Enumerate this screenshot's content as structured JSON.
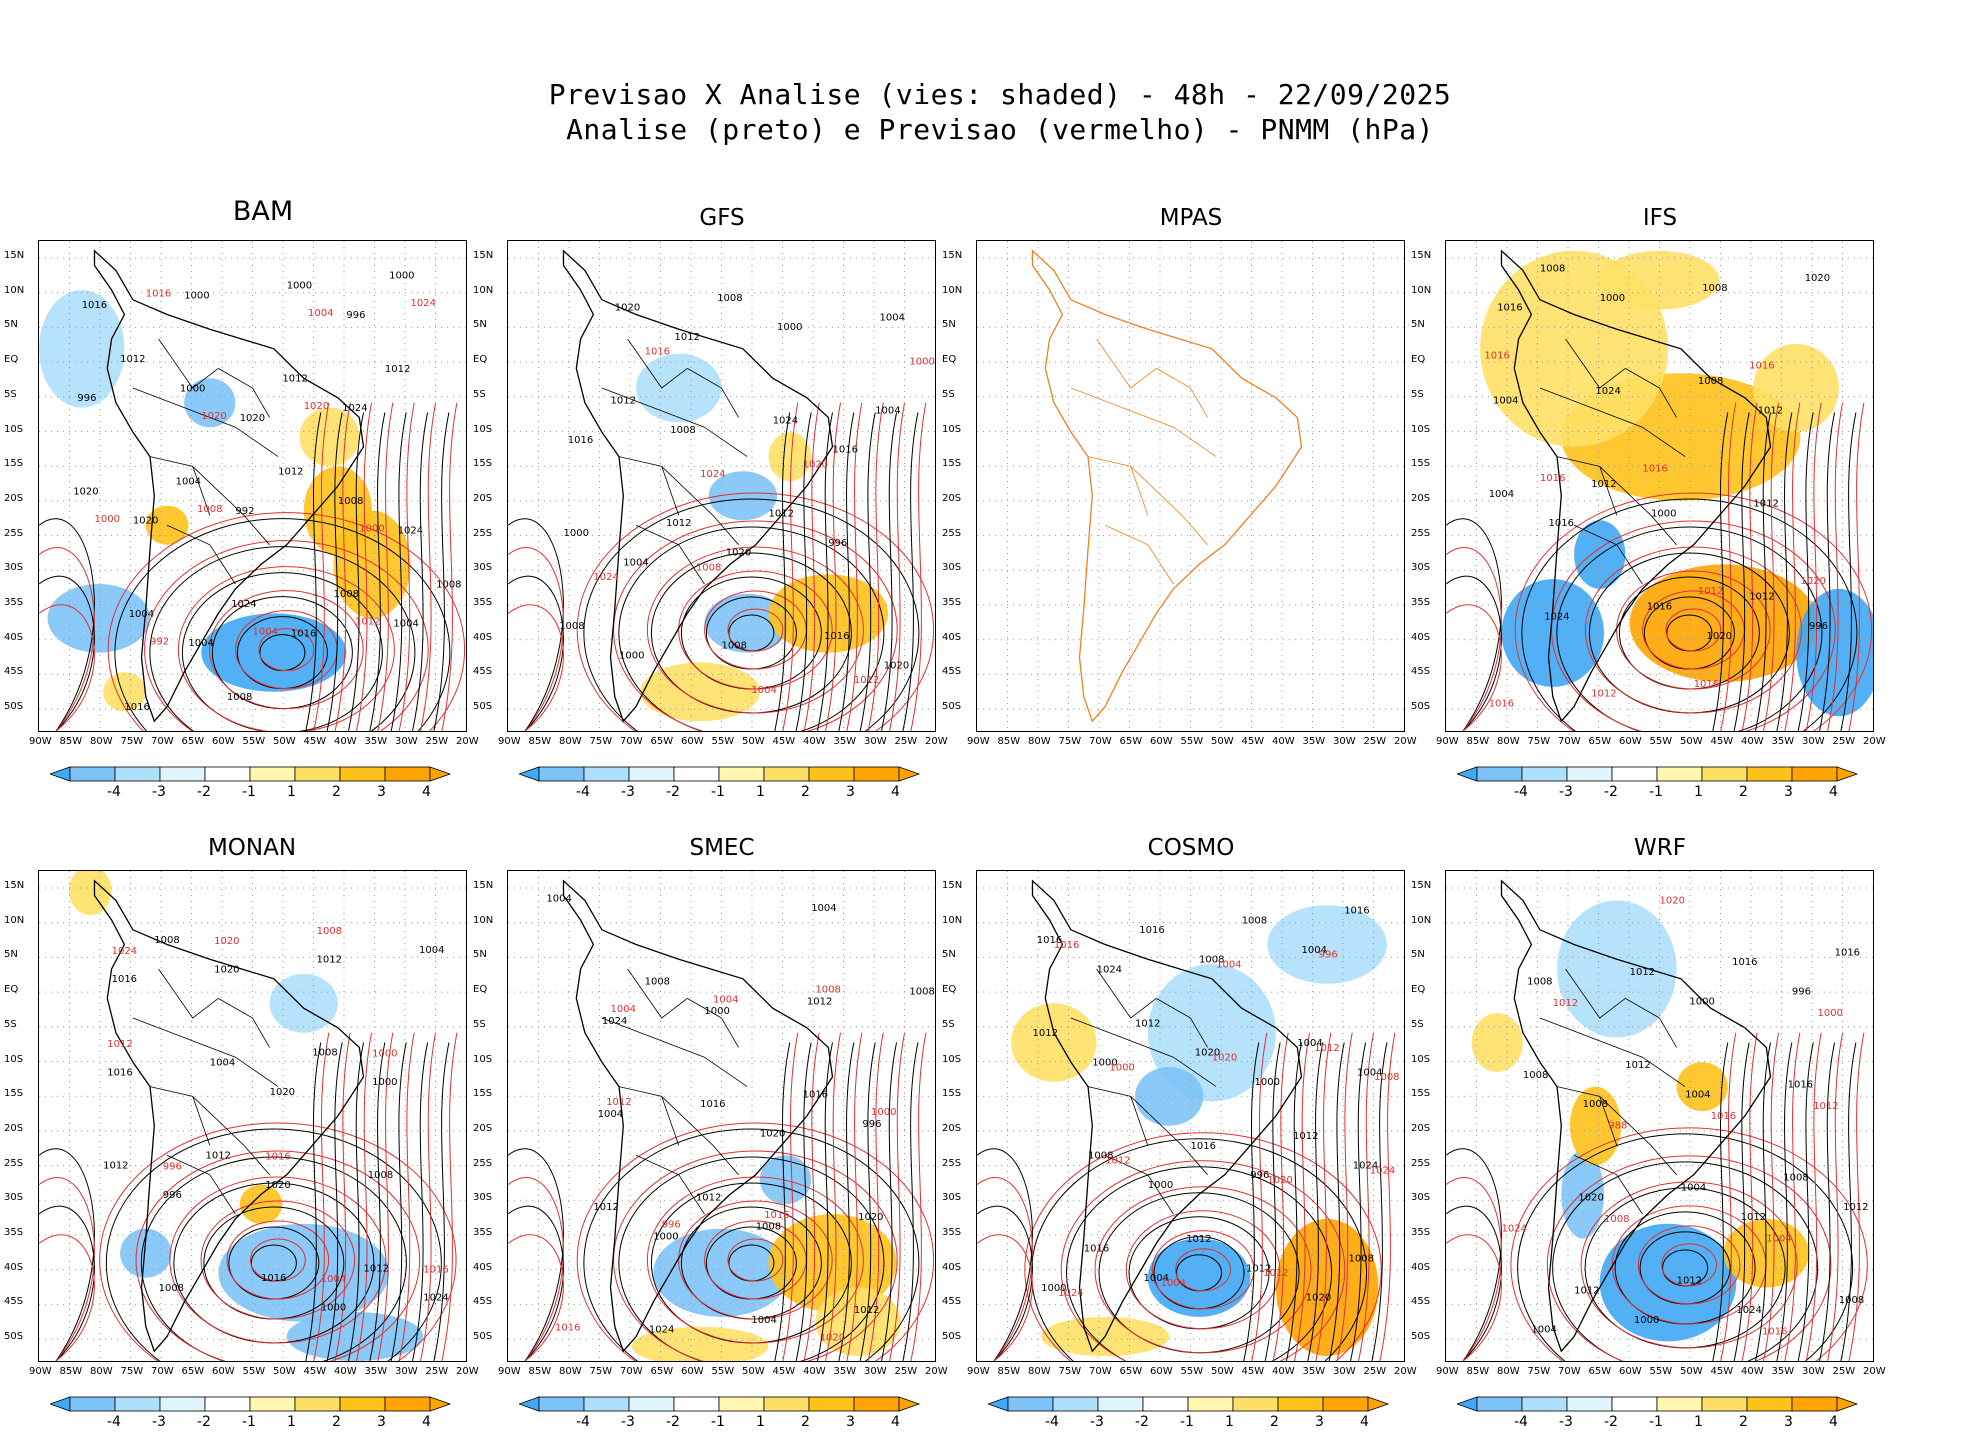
{
  "title": {
    "line1": "Previsao X Analise (vies: shaded) - 48h - 22/09/2025",
    "line2": "Analise (preto) e Previsao (vermelho) - PNMM (hPa)"
  },
  "axes": {
    "lat_labels": [
      "15N",
      "10N",
      "5N",
      "EQ",
      "5S",
      "10S",
      "15S",
      "20S",
      "25S",
      "30S",
      "35S",
      "40S",
      "45S",
      "50S"
    ],
    "lon_labels": [
      "90W",
      "85W",
      "80W",
      "75W",
      "70W",
      "65W",
      "60W",
      "55W",
      "50W",
      "45W",
      "40W",
      "35W",
      "30W",
      "25W",
      "20W"
    ]
  },
  "colorbar": {
    "labels": [
      "-4",
      "-3",
      "-2",
      "-1",
      "1",
      "2",
      "3",
      "4"
    ],
    "colors": [
      "#3fa9f5",
      "#7dc3f7",
      "#aee0fb",
      "#dff4fd",
      "#ffffff",
      "#fff7b0",
      "#ffe066",
      "#ffc21a",
      "#ffa400"
    ]
  },
  "colors": {
    "analysis_isobar": "#000000",
    "forecast_isobar": "#e03030",
    "coastline": "#000000",
    "mpas_outline": "#f08020"
  },
  "panels": [
    {
      "name": "BAM",
      "isobars": [
        "1012",
        "1012",
        "1008",
        "1008",
        "1012",
        "1004",
        "1008",
        "1016",
        "1012",
        "1020",
        "1024",
        "1000",
        "1000",
        "1008",
        "1004",
        "1000",
        "996",
        "992",
        "1004",
        "1000",
        "1024",
        "1020",
        "1016",
        "1016",
        "1020",
        "1024",
        "1004",
        "996"
      ],
      "forecast_isobars": [
        "1008",
        "1012",
        "1016",
        "1020",
        "1000",
        "1004",
        "1024",
        "1020",
        "1000",
        "992",
        "1004"
      ]
    },
    {
      "name": "GFS",
      "isobars": [
        "1012",
        "1012",
        "1008",
        "1008",
        "1004",
        "1012",
        "1016",
        "1020",
        "1024",
        "1000",
        "1008",
        "1004",
        "1008",
        "996",
        "1000",
        "1000",
        "1016",
        "1020",
        "1020",
        "1012",
        "1016",
        "1004"
      ],
      "forecast_isobars": [
        "1008",
        "1012",
        "1016",
        "1020",
        "1024",
        "1004",
        "1000",
        "1024"
      ]
    },
    {
      "name": "MPAS",
      "isobars": [],
      "forecast_isobars": []
    },
    {
      "name": "IFS",
      "isobars": [
        "1012",
        "1012",
        "1008",
        "1008",
        "1004",
        "1016",
        "1020",
        "1024",
        "1012",
        "1024",
        "1008",
        "1004",
        "1000",
        "996",
        "1000",
        "1012",
        "1016",
        "1020",
        "1016"
      ],
      "forecast_isobars": [
        "1016",
        "1016",
        "1016",
        "1020",
        "1012",
        "1016",
        "1016",
        "1012",
        "1016"
      ]
    },
    {
      "name": "MONAN",
      "isobars": [
        "1012",
        "1012",
        "1008",
        "1008",
        "1012",
        "1016",
        "1004",
        "1004",
        "1008",
        "1008",
        "1012",
        "1016",
        "1020",
        "1024",
        "1020",
        "1000",
        "996",
        "1000",
        "1016",
        "1020"
      ],
      "forecast_isobars": [
        "1008",
        "1012",
        "1016",
        "1016",
        "1020",
        "1000",
        "996",
        "1004",
        "1024"
      ]
    },
    {
      "name": "SMEC",
      "isobars": [
        "1012",
        "1012",
        "1008",
        "1016",
        "1012",
        "1004",
        "1008",
        "1016",
        "1020",
        "1024",
        "1012",
        "1004",
        "1008",
        "1004",
        "1000",
        "996",
        "1000",
        "1004",
        "1024",
        "1020"
      ],
      "forecast_isobars": [
        "1008",
        "1012",
        "1016",
        "1016",
        "1004",
        "1000",
        "996",
        "1020",
        "1004"
      ]
    },
    {
      "name": "COSMO",
      "isobars": [
        "1012",
        "1016",
        "1012",
        "1012",
        "1016",
        "1008",
        "1012",
        "1016",
        "1008",
        "1016",
        "1004",
        "1008",
        "1012",
        "1016",
        "1020",
        "1024",
        "1004",
        "1004",
        "1000",
        "996",
        "1000",
        "1008",
        "1004",
        "1000",
        "1020",
        "1024",
        "1000"
      ],
      "forecast_isobars": [
        "1012",
        "1012",
        "1012",
        "1016",
        "1020",
        "1024",
        "1004",
        "996",
        "1000",
        "1020",
        "1024",
        "1004",
        "1008"
      ]
    },
    {
      "name": "WRF",
      "isobars": [
        "1012",
        "1016",
        "1012",
        "1008",
        "1012",
        "1016",
        "1008",
        "1004",
        "1008",
        "1012",
        "1016",
        "1020",
        "1024",
        "1008",
        "1004",
        "1012",
        "1000",
        "996",
        "1008",
        "1012",
        "1004",
        "1000"
      ],
      "forecast_isobars": [
        "1012",
        "1008",
        "1016",
        "1012",
        "1016",
        "1024",
        "1020",
        "1000",
        "988",
        "1004"
      ]
    }
  ]
}
